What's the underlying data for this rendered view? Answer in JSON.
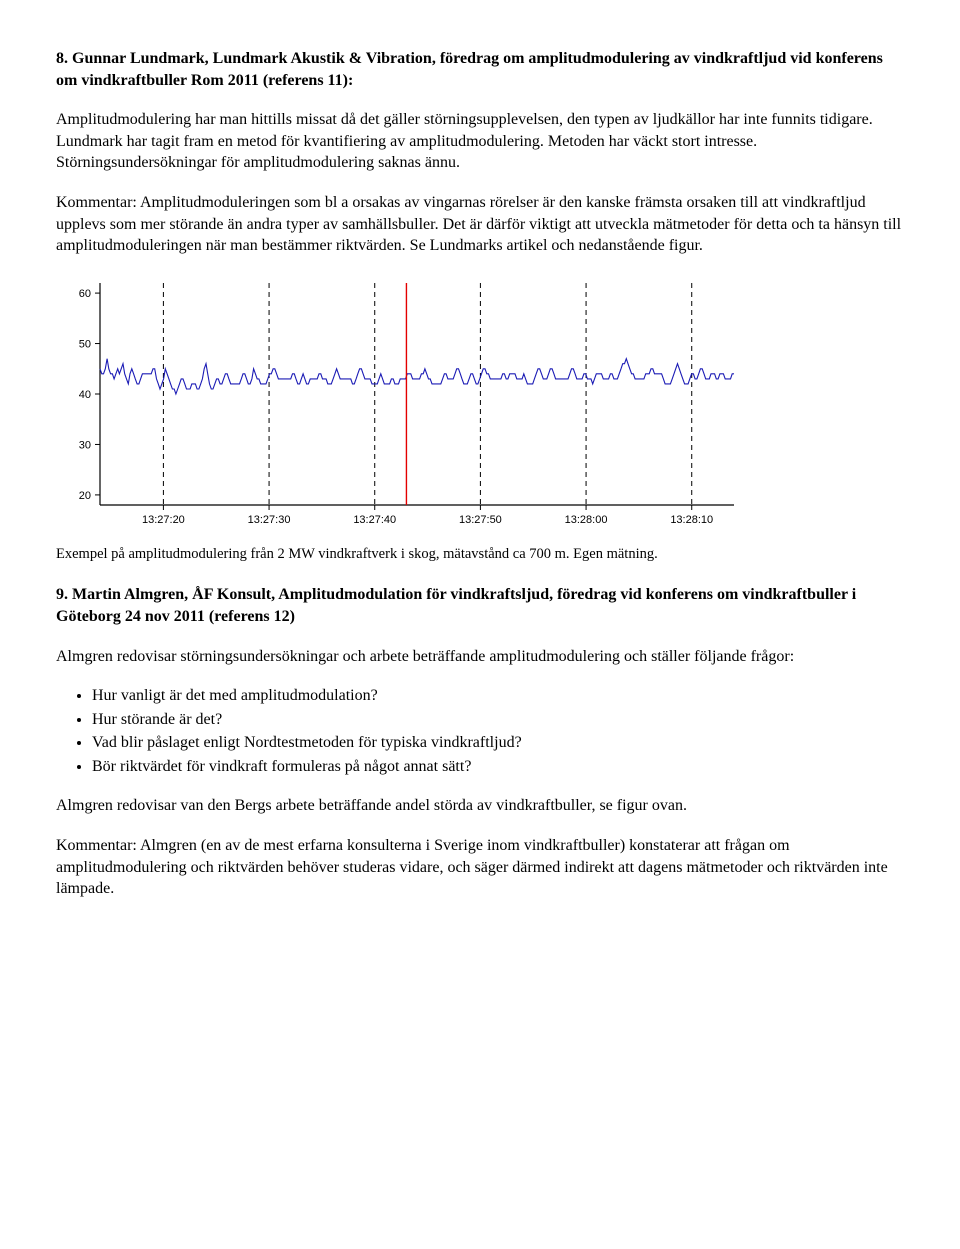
{
  "section8": {
    "title": "8. Gunnar Lundmark, Lundmark Akustik & Vibration, föredrag om amplitudmodulering av vindkraftljud vid konferens om vindkraftbuller Rom 2011 (referens 11):",
    "para1": "Amplitudmodulering har man hittills missat då det gäller störningsupplevelsen, den typen av ljudkällor har inte funnits tidigare. Lundmark har tagit fram en metod för kvantifiering av amplitudmodulering. Metoden har väckt stort intresse. Störningsundersökningar för amplitud­modulering saknas ännu.",
    "para2": "Kommentar: Amplitudmoduleringen som bl a orsakas av vingarnas rörelser är den kanske främsta orsaken till att vindkraftljud upplevs som mer störande än andra typer av sam­hällsbuller. Det är därför viktigt att utveckla mätmetoder för detta och ta hänsyn till amplitud­moduleringen när man bestämmer riktvärden. Se Lundmarks artikel och nedanstående figur."
  },
  "chart": {
    "type": "line",
    "background_color": "#ffffff",
    "axis_color": "#000000",
    "grid_color": "#000000",
    "grid_dash": "5,4",
    "series_color": "#1b1bb5",
    "cursor_color": "#e30000",
    "cursor_x": 33,
    "line_width": 1.1,
    "ylim": [
      18,
      62
    ],
    "y_ticks": [
      20,
      30,
      40,
      50,
      60
    ],
    "x_labels": [
      "13:27:20",
      "13:27:30",
      "13:27:40",
      "13:27:50",
      "13:28:00",
      "13:28:10"
    ],
    "x_tick_positions": [
      10,
      20,
      30,
      40,
      50,
      60
    ],
    "x_gridlines": [
      10,
      20,
      30,
      40,
      50,
      60
    ],
    "x_range": [
      4,
      64
    ],
    "tick_fontsize": 11,
    "values": [
      45,
      44,
      44,
      45,
      47,
      45,
      44,
      44,
      43,
      44,
      45,
      44,
      45,
      46,
      44,
      43,
      42,
      44,
      45,
      44,
      43,
      42,
      42,
      43,
      44,
      44,
      44,
      44,
      44,
      44,
      45,
      45,
      43,
      42,
      41,
      42,
      43,
      45,
      44,
      43,
      42,
      41,
      41,
      40,
      41,
      42,
      43,
      43,
      42,
      41,
      41,
      41,
      42,
      42,
      42,
      41,
      41,
      42,
      43,
      45,
      46,
      44,
      42,
      41,
      41,
      42,
      43,
      43,
      42,
      42,
      43,
      44,
      44,
      43,
      42,
      42,
      42,
      42,
      42,
      42,
      43,
      44,
      44,
      43,
      42,
      42,
      43,
      45,
      44,
      43,
      43,
      42,
      42,
      42,
      42,
      43,
      44,
      44,
      45,
      45,
      44,
      43,
      43,
      43,
      43,
      43,
      43,
      43,
      43,
      44,
      44,
      43,
      42,
      42,
      43,
      44,
      43,
      42,
      42,
      43,
      43,
      43,
      43,
      43,
      44,
      44,
      43,
      43,
      43,
      42,
      42,
      42,
      43,
      44,
      45,
      44,
      43,
      43,
      43,
      43,
      43,
      43,
      43,
      42,
      42,
      43,
      44,
      45,
      45,
      44,
      43,
      43,
      43,
      43,
      42,
      42,
      42,
      42,
      43,
      44,
      43,
      42,
      42,
      42,
      42,
      43,
      43,
      42,
      42,
      42,
      43,
      43,
      43,
      43,
      44,
      44,
      44,
      43,
      43,
      43,
      43,
      43,
      44,
      44,
      45,
      44,
      43,
      43,
      42,
      42,
      42,
      42,
      42,
      42,
      43,
      44,
      44,
      43,
      43,
      43,
      43,
      44,
      45,
      45,
      44,
      43,
      42,
      42,
      42,
      43,
      44,
      44,
      43,
      42,
      42,
      43,
      44,
      45,
      45,
      44,
      44,
      43,
      43,
      43,
      43,
      43,
      43,
      43,
      44,
      44,
      43,
      43,
      44,
      44,
      44,
      44,
      43,
      43,
      43,
      43,
      44,
      43,
      42,
      42,
      42,
      42,
      43,
      44,
      45,
      45,
      44,
      43,
      43,
      43,
      44,
      45,
      45,
      44,
      43,
      43,
      43,
      43,
      43,
      43,
      43,
      43,
      44,
      45,
      45,
      44,
      43,
      43,
      43,
      43,
      44,
      44,
      43,
      43,
      43,
      42,
      43,
      44,
      44,
      44,
      44,
      43,
      43,
      43,
      43,
      44,
      44,
      43,
      43,
      43,
      44,
      45,
      46,
      46,
      47,
      46,
      45,
      44,
      44,
      43,
      43,
      43,
      43,
      43,
      43,
      44,
      44,
      44,
      45,
      45,
      44,
      44,
      44,
      44,
      44,
      43,
      42,
      42,
      42,
      42,
      43,
      44,
      45,
      46,
      45,
      44,
      43,
      42,
      42,
      42,
      43,
      44,
      44,
      43,
      43,
      44,
      45,
      45,
      44,
      43,
      43,
      43,
      44,
      44,
      44,
      43,
      43,
      44,
      44,
      44,
      43,
      43,
      43,
      43,
      44,
      44
    ]
  },
  "caption": "Exempel på amplitudmodulering från 2 MW vindkraftverk i skog, mätavstånd ca 700 m. Egen mätning.",
  "section9": {
    "title": "9. Martin Almgren, ÅF Konsult, Amplitudmodulation för vindkraftsljud, föredrag vid konferens om vindkraftbuller i Göteborg 24 nov 2011 (referens 12)",
    "para1": "Almgren redovisar störningsundersökningar och arbete beträffande amplitudmodulering och ställer följande frågor:",
    "bullets": [
      "Hur vanligt är det med amplitudmodulation?",
      "Hur störande är det?",
      "Vad blir påslaget enligt Nordtestmetoden för typiska vindkraftljud?",
      "Bör riktvärdet för vindkraft formuleras på något annat sätt?"
    ],
    "para2": "Almgren redovisar van den Bergs arbete beträffande andel störda av vindkraftbuller, se figur ovan.",
    "para3": "Kommentar: Almgren (en av de mest erfarna konsulterna i Sverige inom vindkraftbuller) konstaterar att frågan om amplitudmodulering och riktvärden behöver studeras vidare, och säger därmed indirekt att dagens mätmetoder och riktvärden inte lämpade."
  }
}
